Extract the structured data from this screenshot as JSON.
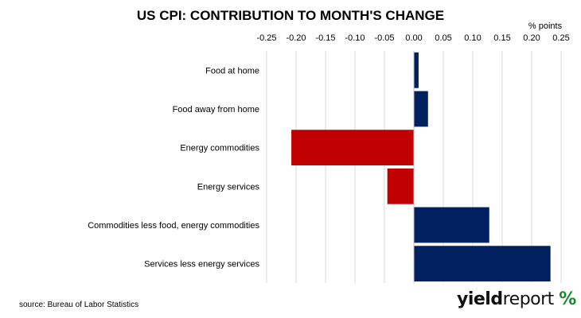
{
  "title": "US CPI: CONTRIBUTION TO MONTH'S CHANGE",
  "source": "source: Bureau of Labor Statistics",
  "brand": {
    "part1": "yield",
    "part2": "report",
    "symbol": "%"
  },
  "colors": {
    "positive": "#002060",
    "negative": "#c00000",
    "grid": "#d9d9d9"
  },
  "chart_data": {
    "type": "bar",
    "orientation": "horizontal",
    "title": "US CPI: CONTRIBUTION TO MONTH'S CHANGE",
    "unit_label": "% points",
    "xlim": [
      -0.25,
      0.25
    ],
    "ticks": [
      -0.25,
      -0.2,
      -0.15,
      -0.1,
      -0.05,
      0.0,
      0.05,
      0.1,
      0.15,
      0.2,
      0.25
    ],
    "tick_labels": [
      "-0.25",
      "-0.20",
      "-0.15",
      "-0.10",
      "-0.05",
      "0.00",
      "0.05",
      "0.10",
      "0.15",
      "0.20",
      "0.25"
    ],
    "grid": true,
    "axis_position": "top",
    "categories": [
      "Food at home",
      "Food away from home",
      "Energy commodities",
      "Energy services",
      "Commodities less food, energy commodities",
      "Services less energy services"
    ],
    "values": [
      0.008,
      0.024,
      -0.208,
      -0.045,
      0.128,
      0.232
    ]
  }
}
